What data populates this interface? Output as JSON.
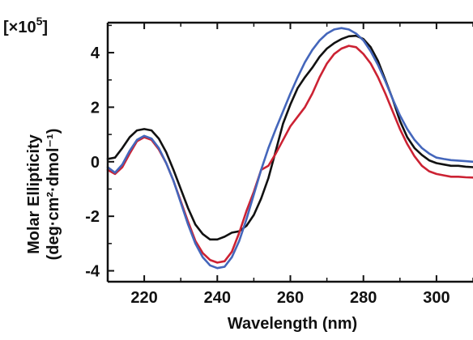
{
  "chart_data": {
    "type": "line",
    "title": "",
    "xlabel": "Wavelength (nm)",
    "ylabel": "Molar Ellipticity",
    "ylabel_units": "(deg·cm²·dmol⁻¹)",
    "y_multiplier": {
      "base": "[×10",
      "exponent": "5",
      "close": "]"
    },
    "xlim": [
      210,
      310
    ],
    "ylim": [
      -4.4,
      5.1
    ],
    "x_ticks": [
      220,
      240,
      260,
      280,
      300
    ],
    "x_tick_labels": [
      "220",
      "240",
      "260",
      "280",
      "300"
    ],
    "y_ticks": [
      -4,
      -2,
      0,
      2,
      4
    ],
    "y_tick_labels": [
      "-4",
      "-2",
      "0",
      "2",
      "4"
    ],
    "grid": false,
    "legend": "none",
    "series": [
      {
        "color": "#111111",
        "x": [
          210,
          212,
          214,
          216,
          218,
          220,
          222,
          224,
          226,
          228,
          230,
          232,
          234,
          236,
          238,
          240,
          242,
          244,
          246,
          248,
          250,
          252,
          254,
          256,
          258,
          260,
          262,
          264,
          266,
          268,
          270,
          272,
          274,
          276,
          278,
          280,
          282,
          284,
          286,
          288,
          290,
          292,
          294,
          296,
          298,
          300,
          302,
          304,
          306,
          308,
          310
        ],
        "y": [
          0.1,
          0.15,
          0.5,
          0.9,
          1.15,
          1.2,
          1.15,
          0.85,
          0.35,
          -0.3,
          -1.0,
          -1.7,
          -2.3,
          -2.65,
          -2.85,
          -2.85,
          -2.75,
          -2.6,
          -2.55,
          -2.35,
          -1.95,
          -1.35,
          -0.6,
          0.4,
          1.4,
          2.1,
          2.7,
          3.1,
          3.45,
          3.85,
          4.15,
          4.35,
          4.5,
          4.6,
          4.62,
          4.5,
          4.2,
          3.7,
          3.0,
          2.3,
          1.5,
          0.9,
          0.5,
          0.25,
          0.05,
          -0.05,
          -0.1,
          -0.15,
          -0.15,
          -0.18,
          -0.2
        ]
      },
      {
        "color": "#cc2233",
        "x": [
          210,
          212,
          214,
          216,
          218,
          220,
          222,
          224,
          226,
          228,
          230,
          232,
          234,
          236,
          238,
          240,
          242,
          244,
          246,
          248,
          250,
          252,
          254,
          256,
          258,
          260,
          262,
          264,
          266,
          268,
          270,
          272,
          274,
          276,
          278,
          280,
          282,
          284,
          286,
          288,
          290,
          292,
          294,
          296,
          298,
          300,
          302,
          304,
          306,
          308,
          310
        ],
        "y": [
          -0.3,
          -0.45,
          -0.2,
          0.3,
          0.75,
          0.9,
          0.8,
          0.45,
          -0.05,
          -0.7,
          -1.45,
          -2.2,
          -2.9,
          -3.35,
          -3.6,
          -3.7,
          -3.65,
          -3.3,
          -2.6,
          -1.8,
          -1.1,
          -0.3,
          -0.15,
          0.3,
          0.8,
          1.3,
          1.65,
          2.0,
          2.5,
          3.1,
          3.6,
          3.95,
          4.15,
          4.25,
          4.2,
          3.95,
          3.6,
          3.1,
          2.5,
          1.85,
          1.2,
          0.65,
          0.2,
          -0.15,
          -0.35,
          -0.45,
          -0.5,
          -0.55,
          -0.55,
          -0.57,
          -0.58
        ]
      },
      {
        "color": "#4466bb",
        "x": [
          210,
          212,
          214,
          216,
          218,
          220,
          222,
          224,
          226,
          228,
          230,
          232,
          234,
          236,
          238,
          240,
          242,
          244,
          246,
          248,
          250,
          252,
          254,
          256,
          258,
          260,
          262,
          264,
          266,
          268,
          270,
          272,
          274,
          276,
          278,
          280,
          282,
          284,
          286,
          288,
          290,
          292,
          294,
          296,
          298,
          300,
          302,
          304,
          306,
          308,
          310
        ],
        "y": [
          -0.2,
          -0.4,
          -0.1,
          0.4,
          0.8,
          0.95,
          0.85,
          0.5,
          -0.05,
          -0.7,
          -1.5,
          -2.3,
          -3.0,
          -3.5,
          -3.8,
          -3.9,
          -3.85,
          -3.5,
          -2.9,
          -2.1,
          -1.2,
          -0.3,
          0.5,
          1.2,
          1.85,
          2.5,
          3.1,
          3.65,
          4.1,
          4.45,
          4.7,
          4.85,
          4.9,
          4.85,
          4.7,
          4.45,
          4.05,
          3.55,
          2.95,
          2.3,
          1.7,
          1.2,
          0.8,
          0.5,
          0.3,
          0.15,
          0.1,
          0.06,
          0.04,
          0.02,
          0.0
        ]
      }
    ]
  }
}
